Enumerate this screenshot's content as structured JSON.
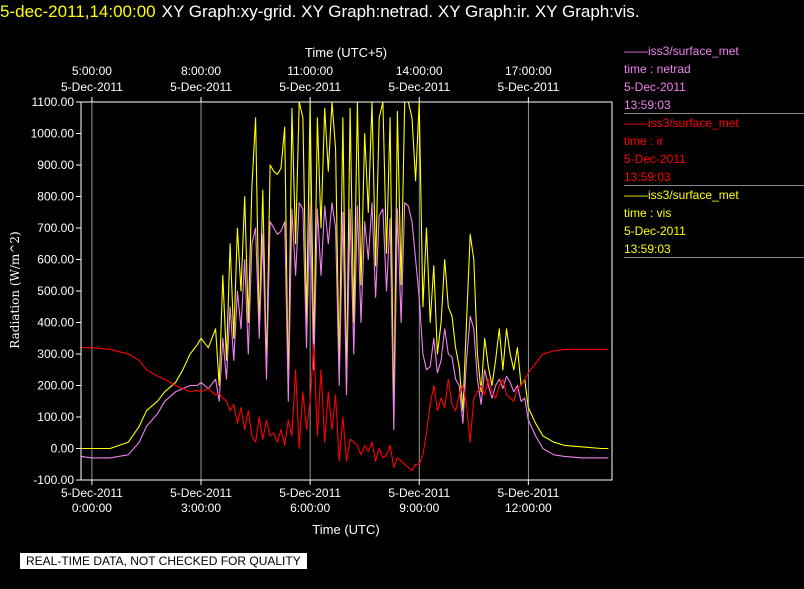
{
  "header": {
    "timestamp": "5-dec-2011,14:00:00",
    "graphs": "XY Graph:xy-grid.  XY Graph:netrad.  XY Graph:ir.  XY Graph:vis."
  },
  "quality_notice": "REAL-TIME DATA, NOT CHECKED FOR QUALITY",
  "legend": [
    {
      "station": "iss3/surface_met",
      "line2": "time : netrad",
      "date": "5-Dec-2011",
      "time": "13:59:03",
      "color": "#ee82ee"
    },
    {
      "station": "iss3/surface_met",
      "line2": "time : ir",
      "date": "5-Dec-2011",
      "time": "13:59:03",
      "color": "#ff0000"
    },
    {
      "station": "iss3/surface_met",
      "line2": "time : vis",
      "date": "5-Dec-2011",
      "time": "13:59:03",
      "color": "#ffff00"
    }
  ],
  "chart_data": {
    "type": "line",
    "xlabel": "Time (UTC)",
    "top_xlabel": "Time (UTC+5)",
    "ylabel": "Radiation (W/m^2)",
    "xlim": [
      -0.3,
      14.3
    ],
    "ylim": [
      -100,
      1100
    ],
    "grid": true,
    "yticks": [
      -100,
      0,
      100,
      200,
      300,
      400,
      500,
      600,
      700,
      800,
      900,
      1000,
      1100
    ],
    "ytick_labels": [
      "-100.00",
      "0.00",
      "100.00",
      "200.00",
      "300.00",
      "400.00",
      "500.00",
      "600.00",
      "700.00",
      "800.00",
      "900.00",
      "1000.00",
      "1100.00"
    ],
    "bottom_ticks": [
      {
        "x": 0,
        "date": "5-Dec-2011",
        "time": "0:00:00"
      },
      {
        "x": 3,
        "date": "5-Dec-2011",
        "time": "3:00:00"
      },
      {
        "x": 6,
        "date": "5-Dec-2011",
        "time": "6:00:00"
      },
      {
        "x": 9,
        "date": "5-Dec-2011",
        "time": "9:00:00"
      },
      {
        "x": 12,
        "date": "5-Dec-2011",
        "time": "12:00:00"
      }
    ],
    "top_ticks": [
      {
        "x": 0,
        "time": "5:00:00",
        "date": "5-Dec-2011"
      },
      {
        "x": 3,
        "time": "8:00:00",
        "date": "5-Dec-2011"
      },
      {
        "x": 6,
        "time": "11:00:00",
        "date": "5-Dec-2011"
      },
      {
        "x": 9,
        "time": "14:00:00",
        "date": "5-Dec-2011"
      },
      {
        "x": 12,
        "time": "17:00:00",
        "date": "5-Dec-2011"
      }
    ],
    "series": [
      {
        "name": "vis",
        "color": "#ffff00",
        "x": [
          -0.3,
          0,
          0.5,
          1,
          1.3,
          1.5,
          1.8,
          2,
          2.3,
          2.5,
          2.7,
          2.9,
          3,
          3.2,
          3.4,
          3.5,
          3.6,
          3.7,
          3.8,
          3.9,
          4,
          4.1,
          4.2,
          4.3,
          4.4,
          4.5,
          4.6,
          4.7,
          4.8,
          4.9,
          5,
          5.1,
          5.2,
          5.3,
          5.4,
          5.5,
          5.6,
          5.7,
          5.8,
          5.9,
          6,
          6.1,
          6.2,
          6.3,
          6.4,
          6.5,
          6.6,
          6.7,
          6.8,
          6.9,
          7,
          7.1,
          7.2,
          7.3,
          7.4,
          7.5,
          7.6,
          7.7,
          7.8,
          7.9,
          8,
          8.1,
          8.2,
          8.3,
          8.4,
          8.5,
          8.6,
          8.7,
          8.8,
          8.9,
          9,
          9.1,
          9.2,
          9.3,
          9.4,
          9.5,
          9.6,
          9.7,
          9.8,
          9.9,
          10,
          10.1,
          10.2,
          10.3,
          10.4,
          10.5,
          10.6,
          10.7,
          10.8,
          10.9,
          11,
          11.1,
          11.2,
          11.3,
          11.4,
          11.5,
          11.6,
          11.7,
          11.8,
          11.9,
          12,
          12.2,
          12.4,
          12.7,
          13,
          13.5,
          14,
          14.2
        ],
        "y": [
          0,
          0,
          0,
          20,
          70,
          120,
          150,
          180,
          210,
          250,
          300,
          330,
          350,
          320,
          380,
          200,
          550,
          280,
          650,
          350,
          700,
          500,
          800,
          400,
          830,
          1050,
          380,
          820,
          250,
          900,
          880,
          870,
          890,
          1020,
          180,
          1080,
          650,
          1100,
          1050,
          400,
          1100,
          300,
          1050,
          700,
          1080,
          880,
          1100,
          950,
          250,
          1050,
          200,
          1080,
          400,
          1100,
          520,
          1000,
          750,
          1100,
          580,
          1050,
          1100,
          620,
          1050,
          90,
          1070,
          520,
          1100,
          1100,
          1050,
          850,
          1100,
          450,
          700,
          400,
          580,
          300,
          400,
          600,
          450,
          420,
          320,
          260,
          120,
          400,
          680,
          600,
          300,
          180,
          350,
          260,
          200,
          280,
          380,
          250,
          380,
          300,
          250,
          320,
          200,
          220,
          130,
          80,
          40,
          20,
          10,
          5,
          0,
          0
        ]
      },
      {
        "name": "netrad",
        "color": "#ee82ee",
        "x": [
          -0.3,
          0,
          0.5,
          1,
          1.3,
          1.5,
          1.8,
          2,
          2.3,
          2.5,
          2.7,
          2.9,
          3,
          3.2,
          3.4,
          3.5,
          3.6,
          3.7,
          3.8,
          3.9,
          4,
          4.1,
          4.2,
          4.3,
          4.4,
          4.5,
          4.6,
          4.7,
          4.8,
          4.9,
          5,
          5.1,
          5.2,
          5.3,
          5.4,
          5.5,
          5.6,
          5.7,
          5.8,
          5.9,
          6,
          6.1,
          6.2,
          6.3,
          6.4,
          6.5,
          6.6,
          6.7,
          6.8,
          6.9,
          7,
          7.1,
          7.2,
          7.3,
          7.4,
          7.5,
          7.6,
          7.7,
          7.8,
          7.9,
          8,
          8.1,
          8.2,
          8.3,
          8.4,
          8.5,
          8.6,
          8.7,
          8.8,
          8.9,
          9,
          9.1,
          9.2,
          9.3,
          9.4,
          9.5,
          9.6,
          9.7,
          9.8,
          9.9,
          10,
          10.1,
          10.2,
          10.3,
          10.4,
          10.5,
          10.6,
          10.7,
          10.8,
          10.9,
          11,
          11.1,
          11.2,
          11.3,
          11.4,
          11.5,
          11.6,
          11.7,
          11.8,
          11.9,
          12,
          12.2,
          12.4,
          12.7,
          13,
          13.5,
          14,
          14.2
        ],
        "y": [
          -25,
          -30,
          -30,
          -20,
          20,
          70,
          110,
          150,
          180,
          190,
          200,
          200,
          210,
          190,
          220,
          150,
          350,
          220,
          450,
          280,
          500,
          380,
          600,
          300,
          650,
          700,
          350,
          680,
          220,
          720,
          700,
          680,
          690,
          720,
          150,
          760,
          550,
          780,
          760,
          320,
          780,
          250,
          760,
          550,
          770,
          650,
          780,
          700,
          200,
          750,
          170,
          760,
          300,
          770,
          400,
          720,
          600,
          780,
          480,
          740,
          760,
          500,
          730,
          60,
          760,
          400,
          780,
          770,
          720,
          600,
          480,
          300,
          250,
          260,
          350,
          240,
          280,
          380,
          300,
          290,
          220,
          200,
          80,
          280,
          420,
          380,
          220,
          140,
          250,
          200,
          160,
          200,
          220,
          190,
          230,
          210,
          180,
          200,
          150,
          160,
          90,
          40,
          0,
          -20,
          -25,
          -30,
          -30,
          -30
        ]
      },
      {
        "name": "ir",
        "color": "#ff0000",
        "x": [
          -0.3,
          0,
          0.5,
          1,
          1.3,
          1.5,
          1.8,
          2,
          2.3,
          2.5,
          2.7,
          2.9,
          3,
          3.2,
          3.4,
          3.5,
          3.6,
          3.7,
          3.8,
          3.9,
          4,
          4.1,
          4.2,
          4.3,
          4.4,
          4.5,
          4.6,
          4.7,
          4.8,
          4.9,
          5,
          5.1,
          5.2,
          5.3,
          5.4,
          5.5,
          5.6,
          5.7,
          5.8,
          5.9,
          6,
          6.1,
          6.2,
          6.3,
          6.4,
          6.5,
          6.6,
          6.7,
          6.8,
          6.9,
          7,
          7.1,
          7.2,
          7.3,
          7.4,
          7.5,
          7.6,
          7.7,
          7.8,
          7.9,
          8,
          8.1,
          8.2,
          8.3,
          8.4,
          8.5,
          8.6,
          8.7,
          8.8,
          8.9,
          9,
          9.1,
          9.2,
          9.3,
          9.4,
          9.5,
          9.6,
          9.7,
          9.8,
          9.9,
          10,
          10.1,
          10.2,
          10.3,
          10.4,
          10.5,
          10.6,
          10.7,
          10.8,
          10.9,
          11,
          11.1,
          11.2,
          11.3,
          11.4,
          11.5,
          11.6,
          11.7,
          11.8,
          11.9,
          12,
          12.2,
          12.4,
          12.7,
          13,
          13.5,
          14,
          14.2
        ],
        "y": [
          320,
          320,
          315,
          300,
          280,
          250,
          230,
          220,
          200,
          190,
          180,
          185,
          180,
          190,
          170,
          175,
          160,
          150,
          120,
          140,
          80,
          130,
          60,
          120,
          40,
          20,
          100,
          30,
          90,
          40,
          50,
          20,
          60,
          10,
          90,
          40,
          250,
          0,
          180,
          60,
          150,
          330,
          40,
          250,
          20,
          180,
          60,
          170,
          -40,
          100,
          -40,
          30,
          20,
          10,
          -20,
          10,
          -10,
          20,
          -40,
          0,
          -30,
          -20,
          10,
          -60,
          -30,
          -40,
          -50,
          -60,
          -70,
          -50,
          -50,
          -20,
          50,
          140,
          200,
          120,
          160,
          130,
          220,
          140,
          120,
          170,
          200,
          140,
          20,
          160,
          180,
          200,
          170,
          220,
          180,
          160,
          200,
          220,
          170,
          160,
          150,
          190,
          200,
          220,
          240,
          270,
          300,
          310,
          315,
          315,
          315,
          315
        ]
      }
    ]
  }
}
